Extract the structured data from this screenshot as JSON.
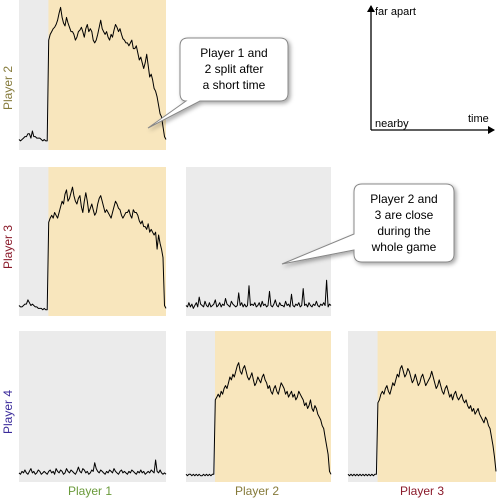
{
  "chart_data": {
    "type": "line",
    "title": "",
    "x_axis_meaning": {
      "label": "time"
    },
    "y_axis_meaning": {
      "low_label": "nearby",
      "high_label": "far apart"
    },
    "grid": false,
    "row_labels": [
      "Player 2",
      "Player 3",
      "Player 4"
    ],
    "column_labels": [
      "Player 1",
      "Player 2",
      "Player 3"
    ],
    "colors": {
      "player1": "#6a9a3a",
      "player2": "#857a3a",
      "player3": "#8a1a2a",
      "player4": "#3a2a9a",
      "highlight": "#f8e6bd",
      "background": "#ebebeb",
      "line": "#000000"
    },
    "panels": [
      {
        "row": "Player 2",
        "col": "Player 1",
        "highlight_range": [
          0.2,
          1.0
        ],
        "values": [
          0.06,
          0.05,
          0.06,
          0.07,
          0.08,
          0.08,
          0.1,
          0.1,
          0.07,
          0.12,
          0.08,
          0.08,
          0.07,
          0.07,
          0.07,
          0.06,
          0.05,
          0.06,
          0.05,
          0.05,
          0.76,
          0.8,
          0.82,
          0.84,
          0.85,
          0.87,
          0.9,
          0.95,
          0.99,
          0.92,
          0.88,
          0.86,
          0.92,
          0.88,
          0.85,
          0.82,
          0.82,
          0.8,
          0.76,
          0.78,
          0.82,
          0.83,
          0.85,
          0.82,
          0.78,
          0.84,
          0.87,
          0.82,
          0.84,
          0.82,
          0.76,
          0.74,
          0.76,
          0.8,
          0.85,
          0.9,
          0.84,
          0.82,
          0.8,
          0.82,
          0.78,
          0.76,
          0.8,
          0.78,
          0.83,
          0.87,
          0.85,
          0.82,
          0.84,
          0.8,
          0.77,
          0.76,
          0.74,
          0.74,
          0.72,
          0.74,
          0.76,
          0.7,
          0.7,
          0.72,
          0.67,
          0.62,
          0.64,
          0.6,
          0.56,
          0.6,
          0.66,
          0.58,
          0.5,
          0.52,
          0.48,
          0.42,
          0.4,
          0.36,
          0.3,
          0.24,
          0.22,
          0.15,
          0.08,
          0.06
        ]
      },
      {
        "row": "Player 3",
        "col": "Player 1",
        "highlight_range": [
          0.2,
          1.0
        ],
        "values": [
          0.06,
          0.05,
          0.05,
          0.06,
          0.07,
          0.07,
          0.1,
          0.08,
          0.06,
          0.07,
          0.06,
          0.05,
          0.05,
          0.04,
          0.04,
          0.04,
          0.03,
          0.04,
          0.03,
          0.03,
          0.65,
          0.68,
          0.7,
          0.68,
          0.72,
          0.7,
          0.68,
          0.72,
          0.76,
          0.8,
          0.78,
          0.85,
          0.88,
          0.8,
          0.82,
          0.86,
          0.9,
          0.84,
          0.8,
          0.78,
          0.82,
          0.84,
          0.76,
          0.72,
          0.8,
          0.86,
          0.8,
          0.72,
          0.75,
          0.78,
          0.74,
          0.7,
          0.72,
          0.78,
          0.82,
          0.84,
          0.8,
          0.76,
          0.72,
          0.74,
          0.72,
          0.7,
          0.68,
          0.72,
          0.76,
          0.8,
          0.78,
          0.75,
          0.74,
          0.7,
          0.68,
          0.7,
          0.72,
          0.72,
          0.74,
          0.7,
          0.68,
          0.74,
          0.72,
          0.72,
          0.7,
          0.66,
          0.64,
          0.66,
          0.62,
          0.62,
          0.6,
          0.64,
          0.58,
          0.6,
          0.58,
          0.56,
          0.58,
          0.46,
          0.56,
          0.5,
          0.46,
          0.4,
          0.06,
          0.04
        ]
      },
      {
        "row": "Player 3",
        "col": "Player 2",
        "highlight_range": null,
        "values": [
          0.06,
          0.05,
          0.08,
          0.05,
          0.07,
          0.04,
          0.06,
          0.08,
          0.05,
          0.12,
          0.07,
          0.06,
          0.05,
          0.09,
          0.06,
          0.05,
          0.08,
          0.05,
          0.06,
          0.07,
          0.1,
          0.05,
          0.06,
          0.08,
          0.05,
          0.07,
          0.06,
          0.11,
          0.07,
          0.06,
          0.05,
          0.09,
          0.07,
          0.06,
          0.05,
          0.06,
          0.15,
          0.06,
          0.08,
          0.05,
          0.07,
          0.05,
          0.06,
          0.2,
          0.06,
          0.07,
          0.06,
          0.08,
          0.05,
          0.06,
          0.08,
          0.05,
          0.09,
          0.06,
          0.07,
          0.05,
          0.06,
          0.16,
          0.06,
          0.05,
          0.07,
          0.1,
          0.06,
          0.05,
          0.08,
          0.06,
          0.06,
          0.05,
          0.09,
          0.06,
          0.07,
          0.05,
          0.14,
          0.06,
          0.05,
          0.07,
          0.06,
          0.08,
          0.05,
          0.06,
          0.18,
          0.06,
          0.07,
          0.05,
          0.08,
          0.06,
          0.05,
          0.07,
          0.06,
          0.09,
          0.06,
          0.05,
          0.07,
          0.06,
          0.08,
          0.06,
          0.24,
          0.05,
          0.07,
          0.06
        ]
      },
      {
        "row": "Player 4",
        "col": "Player 1",
        "highlight_range": null,
        "values": [
          0.05,
          0.04,
          0.06,
          0.05,
          0.07,
          0.05,
          0.04,
          0.06,
          0.08,
          0.05,
          0.06,
          0.04,
          0.05,
          0.07,
          0.06,
          0.04,
          0.05,
          0.06,
          0.05,
          0.04,
          0.06,
          0.07,
          0.05,
          0.06,
          0.04,
          0.08,
          0.06,
          0.05,
          0.07,
          0.06,
          0.04,
          0.05,
          0.08,
          0.06,
          0.05,
          0.07,
          0.06,
          0.05,
          0.04,
          0.06,
          0.09,
          0.06,
          0.05,
          0.08,
          0.07,
          0.05,
          0.06,
          0.04,
          0.05,
          0.07,
          0.06,
          0.12,
          0.08,
          0.06,
          0.05,
          0.07,
          0.06,
          0.05,
          0.04,
          0.06,
          0.05,
          0.07,
          0.06,
          0.05,
          0.08,
          0.06,
          0.05,
          0.04,
          0.06,
          0.07,
          0.05,
          0.06,
          0.05,
          0.04,
          0.06,
          0.05,
          0.07,
          0.06,
          0.05,
          0.04,
          0.06,
          0.05,
          0.07,
          0.05,
          0.06,
          0.04,
          0.05,
          0.06,
          0.05,
          0.07,
          0.06,
          0.05,
          0.14,
          0.06,
          0.05,
          0.07,
          0.05,
          0.04,
          0.05,
          0.04
        ]
      },
      {
        "row": "Player 4",
        "col": "Player 2",
        "highlight_range": [
          0.2,
          1.0
        ],
        "values": [
          0.04,
          0.03,
          0.04,
          0.04,
          0.03,
          0.04,
          0.03,
          0.04,
          0.03,
          0.04,
          0.03,
          0.03,
          0.04,
          0.03,
          0.04,
          0.03,
          0.04,
          0.03,
          0.04,
          0.04,
          0.56,
          0.58,
          0.6,
          0.58,
          0.62,
          0.6,
          0.64,
          0.66,
          0.64,
          0.68,
          0.72,
          0.7,
          0.74,
          0.72,
          0.76,
          0.8,
          0.82,
          0.76,
          0.74,
          0.78,
          0.8,
          0.76,
          0.72,
          0.7,
          0.72,
          0.75,
          0.7,
          0.66,
          0.68,
          0.72,
          0.7,
          0.68,
          0.72,
          0.74,
          0.7,
          0.68,
          0.64,
          0.66,
          0.62,
          0.6,
          0.64,
          0.66,
          0.62,
          0.6,
          0.64,
          0.68,
          0.66,
          0.64,
          0.6,
          0.62,
          0.58,
          0.6,
          0.62,
          0.58,
          0.6,
          0.56,
          0.58,
          0.62,
          0.6,
          0.58,
          0.56,
          0.52,
          0.54,
          0.5,
          0.52,
          0.56,
          0.5,
          0.48,
          0.52,
          0.5,
          0.46,
          0.44,
          0.42,
          0.38,
          0.36,
          0.3,
          0.24,
          0.18,
          0.06,
          0.04
        ]
      },
      {
        "row": "Player 4",
        "col": "Player 3",
        "highlight_range": [
          0.2,
          1.0
        ],
        "values": [
          0.04,
          0.03,
          0.04,
          0.03,
          0.04,
          0.03,
          0.04,
          0.03,
          0.04,
          0.03,
          0.04,
          0.03,
          0.04,
          0.03,
          0.04,
          0.03,
          0.04,
          0.03,
          0.04,
          0.04,
          0.54,
          0.56,
          0.6,
          0.62,
          0.6,
          0.64,
          0.66,
          0.62,
          0.6,
          0.64,
          0.68,
          0.66,
          0.7,
          0.74,
          0.72,
          0.78,
          0.8,
          0.76,
          0.72,
          0.74,
          0.78,
          0.76,
          0.72,
          0.68,
          0.7,
          0.74,
          0.7,
          0.66,
          0.68,
          0.72,
          0.74,
          0.7,
          0.66,
          0.68,
          0.7,
          0.72,
          0.76,
          0.72,
          0.68,
          0.64,
          0.66,
          0.7,
          0.66,
          0.62,
          0.6,
          0.64,
          0.66,
          0.62,
          0.58,
          0.6,
          0.56,
          0.6,
          0.62,
          0.58,
          0.56,
          0.58,
          0.6,
          0.56,
          0.54,
          0.56,
          0.52,
          0.5,
          0.52,
          0.48,
          0.5,
          0.46,
          0.48,
          0.5,
          0.46,
          0.44,
          0.42,
          0.4,
          0.44,
          0.42,
          0.38,
          0.36,
          0.3,
          0.24,
          0.16,
          0.06
        ]
      }
    ],
    "annotations": [
      {
        "text_lines": [
          "Player 1 and",
          "2 split after",
          "a short time"
        ],
        "points_to": "Player 2 / Player 1"
      },
      {
        "text_lines": [
          "Player 2 and",
          "3 are close",
          "during the",
          "whole game"
        ],
        "points_to": "Player 3 / Player 2"
      }
    ]
  }
}
